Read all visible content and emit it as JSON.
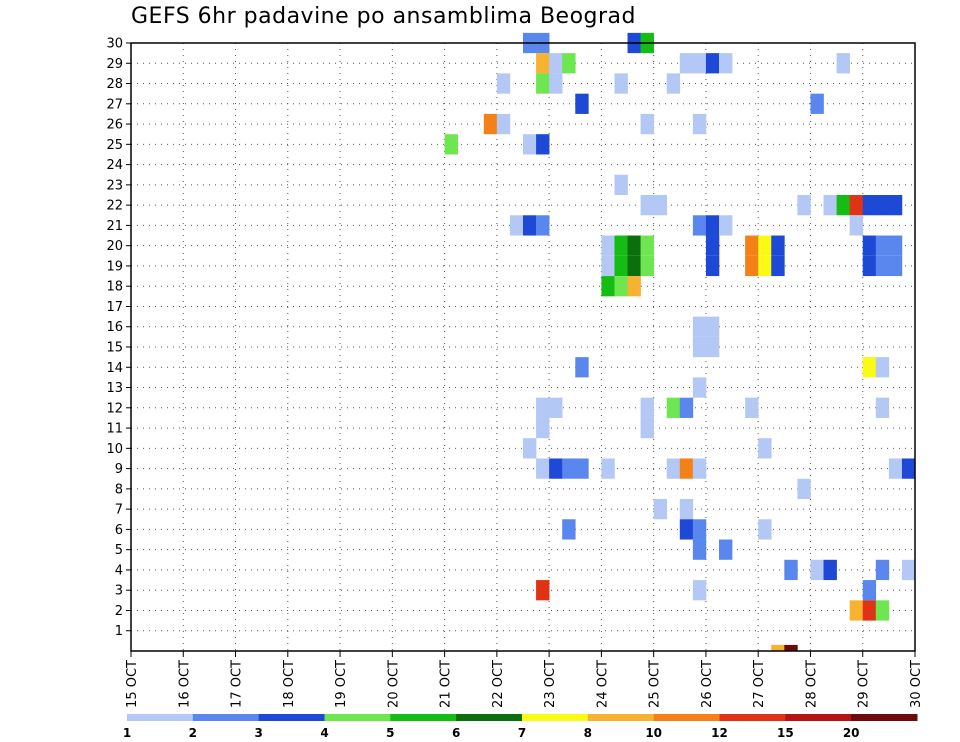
{
  "chart_data": {
    "type": "heatmap",
    "title": "GEFS 6hr padavine po ansamblima Beograd",
    "xlabel": "",
    "ylabel": "",
    "x_tick_labels": [
      "15 OCT",
      "16 OCT",
      "17 OCT",
      "18 OCT",
      "19 OCT",
      "20 OCT",
      "21 OCT",
      "22 OCT",
      "23 OCT",
      "24 OCT",
      "25 OCT",
      "26 OCT",
      "27 OCT",
      "28 OCT",
      "29 OCT",
      "30 OCT"
    ],
    "y_tick_labels": [
      "1",
      "2",
      "3",
      "4",
      "5",
      "6",
      "7",
      "8",
      "9",
      "10",
      "11",
      "12",
      "13",
      "14",
      "15",
      "16",
      "17",
      "18",
      "19",
      "20",
      "21",
      "22",
      "23",
      "24",
      "25",
      "26",
      "27",
      "28",
      "29",
      "30"
    ],
    "x_unit_note": "6-hour steps from 15 OCT; 4 steps per day",
    "ylim": [
      0,
      30
    ],
    "grid": true,
    "legend": {
      "placement": "bottom",
      "bins": [
        {
          "from": 1,
          "to": 2,
          "color": "#b4c8f6"
        },
        {
          "from": 2,
          "to": 3,
          "color": "#5a87ee"
        },
        {
          "from": 3,
          "to": 4,
          "color": "#1e48d6"
        },
        {
          "from": 4,
          "to": 5,
          "color": "#6ee650"
        },
        {
          "from": 5,
          "to": 6,
          "color": "#14bc14"
        },
        {
          "from": 6,
          "to": 7,
          "color": "#0c6e0c"
        },
        {
          "from": 7,
          "to": 8,
          "color": "#fafa14"
        },
        {
          "from": 8,
          "to": 10,
          "color": "#f8b232"
        },
        {
          "from": 10,
          "to": 12,
          "color": "#f48018"
        },
        {
          "from": 12,
          "to": 15,
          "color": "#e03214"
        },
        {
          "from": 15,
          "to": 20,
          "color": "#b41414"
        },
        {
          "from": 20,
          "to": null,
          "color": "#6e0a0a"
        }
      ],
      "labels": [
        "1",
        "2",
        "3",
        "4",
        "5",
        "6",
        "7",
        "8",
        "10",
        "12",
        "15",
        "20"
      ]
    },
    "cells": [
      {
        "member": 30,
        "step": 31,
        "bin": 1
      },
      {
        "member": 30,
        "step": 32,
        "bin": 1
      },
      {
        "member": 30,
        "step": 39,
        "bin": 2
      },
      {
        "member": 30,
        "step": 40,
        "bin": 4
      },
      {
        "member": 29,
        "step": 32,
        "bin": 7
      },
      {
        "member": 29,
        "step": 33,
        "bin": 0
      },
      {
        "member": 29,
        "step": 34,
        "bin": 3
      },
      {
        "member": 29,
        "step": 43,
        "bin": 0
      },
      {
        "member": 29,
        "step": 44,
        "bin": 0
      },
      {
        "member": 29,
        "step": 45,
        "bin": 2
      },
      {
        "member": 29,
        "step": 46,
        "bin": 0
      },
      {
        "member": 29,
        "step": 55,
        "bin": 0
      },
      {
        "member": 28,
        "step": 29,
        "bin": 0
      },
      {
        "member": 28,
        "step": 32,
        "bin": 3
      },
      {
        "member": 28,
        "step": 33,
        "bin": 0
      },
      {
        "member": 28,
        "step": 38,
        "bin": 0
      },
      {
        "member": 28,
        "step": 42,
        "bin": 0
      },
      {
        "member": 27,
        "step": 35,
        "bin": 2
      },
      {
        "member": 27,
        "step": 53,
        "bin": 1
      },
      {
        "member": 26,
        "step": 28,
        "bin": 8
      },
      {
        "member": 26,
        "step": 29,
        "bin": 0
      },
      {
        "member": 26,
        "step": 40,
        "bin": 0
      },
      {
        "member": 26,
        "step": 44,
        "bin": 0
      },
      {
        "member": 25,
        "step": 25,
        "bin": 3
      },
      {
        "member": 25,
        "step": 31,
        "bin": 0
      },
      {
        "member": 25,
        "step": 32,
        "bin": 2
      },
      {
        "member": 23,
        "step": 38,
        "bin": 0
      },
      {
        "member": 22,
        "step": 40,
        "bin": 0
      },
      {
        "member": 22,
        "step": 41,
        "bin": 0
      },
      {
        "member": 22,
        "step": 52,
        "bin": 0
      },
      {
        "member": 22,
        "step": 54,
        "bin": 0
      },
      {
        "member": 22,
        "step": 55,
        "bin": 4
      },
      {
        "member": 22,
        "step": 56,
        "bin": 9
      },
      {
        "member": 22,
        "step": 57,
        "bin": 2
      },
      {
        "member": 22,
        "step": 58,
        "bin": 2
      },
      {
        "member": 22,
        "step": 59,
        "bin": 2
      },
      {
        "member": 21,
        "step": 30,
        "bin": 0
      },
      {
        "member": 21,
        "step": 31,
        "bin": 2
      },
      {
        "member": 21,
        "step": 32,
        "bin": 1
      },
      {
        "member": 21,
        "step": 44,
        "bin": 1
      },
      {
        "member": 21,
        "step": 45,
        "bin": 2
      },
      {
        "member": 21,
        "step": 46,
        "bin": 0
      },
      {
        "member": 21,
        "step": 56,
        "bin": 0
      },
      {
        "member": 20,
        "step": 37,
        "bin": 0
      },
      {
        "member": 20,
        "step": 38,
        "bin": 4
      },
      {
        "member": 20,
        "step": 39,
        "bin": 5
      },
      {
        "member": 20,
        "step": 40,
        "bin": 3
      },
      {
        "member": 20,
        "step": 45,
        "bin": 2
      },
      {
        "member": 20,
        "step": 48,
        "bin": 8
      },
      {
        "member": 20,
        "step": 49,
        "bin": 6
      },
      {
        "member": 20,
        "step": 50,
        "bin": 2
      },
      {
        "member": 20,
        "step": 57,
        "bin": 2
      },
      {
        "member": 20,
        "step": 58,
        "bin": 1
      },
      {
        "member": 20,
        "step": 59,
        "bin": 1
      },
      {
        "member": 19,
        "step": 37,
        "bin": 0
      },
      {
        "member": 19,
        "step": 38,
        "bin": 4
      },
      {
        "member": 19,
        "step": 39,
        "bin": 5
      },
      {
        "member": 19,
        "step": 40,
        "bin": 3
      },
      {
        "member": 19,
        "step": 45,
        "bin": 2
      },
      {
        "member": 19,
        "step": 48,
        "bin": 8
      },
      {
        "member": 19,
        "step": 49,
        "bin": 6
      },
      {
        "member": 19,
        "step": 50,
        "bin": 2
      },
      {
        "member": 19,
        "step": 57,
        "bin": 2
      },
      {
        "member": 19,
        "step": 58,
        "bin": 1
      },
      {
        "member": 19,
        "step": 59,
        "bin": 1
      },
      {
        "member": 18,
        "step": 37,
        "bin": 4
      },
      {
        "member": 18,
        "step": 38,
        "bin": 3
      },
      {
        "member": 18,
        "step": 39,
        "bin": 7
      },
      {
        "member": 16,
        "step": 44,
        "bin": 0
      },
      {
        "member": 16,
        "step": 45,
        "bin": 0
      },
      {
        "member": 15,
        "step": 44,
        "bin": 0
      },
      {
        "member": 15,
        "step": 45,
        "bin": 0
      },
      {
        "member": 14,
        "step": 35,
        "bin": 1
      },
      {
        "member": 14,
        "step": 57,
        "bin": 6
      },
      {
        "member": 14,
        "step": 58,
        "bin": 0
      },
      {
        "member": 13,
        "step": 44,
        "bin": 0
      },
      {
        "member": 12,
        "step": 32,
        "bin": 0
      },
      {
        "member": 12,
        "step": 33,
        "bin": 0
      },
      {
        "member": 12,
        "step": 40,
        "bin": 0
      },
      {
        "member": 12,
        "step": 42,
        "bin": 3
      },
      {
        "member": 12,
        "step": 43,
        "bin": 1
      },
      {
        "member": 12,
        "step": 48,
        "bin": 0
      },
      {
        "member": 12,
        "step": 58,
        "bin": 0
      },
      {
        "member": 11,
        "step": 32,
        "bin": 0
      },
      {
        "member": 11,
        "step": 40,
        "bin": 0
      },
      {
        "member": 10,
        "step": 31,
        "bin": 0
      },
      {
        "member": 10,
        "step": 49,
        "bin": 0
      },
      {
        "member": 9,
        "step": 32,
        "bin": 0
      },
      {
        "member": 9,
        "step": 33,
        "bin": 2
      },
      {
        "member": 9,
        "step": 34,
        "bin": 1
      },
      {
        "member": 9,
        "step": 35,
        "bin": 1
      },
      {
        "member": 9,
        "step": 37,
        "bin": 0
      },
      {
        "member": 9,
        "step": 42,
        "bin": 0
      },
      {
        "member": 9,
        "step": 43,
        "bin": 8
      },
      {
        "member": 9,
        "step": 44,
        "bin": 0
      },
      {
        "member": 9,
        "step": 59,
        "bin": 0
      },
      {
        "member": 9,
        "step": 60,
        "bin": 2
      },
      {
        "member": 8,
        "step": 52,
        "bin": 0
      },
      {
        "member": 7,
        "step": 41,
        "bin": 0
      },
      {
        "member": 7,
        "step": 43,
        "bin": 0
      },
      {
        "member": 6,
        "step": 34,
        "bin": 1
      },
      {
        "member": 6,
        "step": 43,
        "bin": 2
      },
      {
        "member": 6,
        "step": 44,
        "bin": 1
      },
      {
        "member": 6,
        "step": 49,
        "bin": 0
      },
      {
        "member": 5,
        "step": 44,
        "bin": 1
      },
      {
        "member": 5,
        "step": 46,
        "bin": 1
      },
      {
        "member": 4,
        "step": 51,
        "bin": 1
      },
      {
        "member": 4,
        "step": 53,
        "bin": 0
      },
      {
        "member": 4,
        "step": 54,
        "bin": 2
      },
      {
        "member": 4,
        "step": 58,
        "bin": 1
      },
      {
        "member": 4,
        "step": 60,
        "bin": 0
      },
      {
        "member": 3,
        "step": 32,
        "bin": 9
      },
      {
        "member": 3,
        "step": 44,
        "bin": 0
      },
      {
        "member": 3,
        "step": 57,
        "bin": 1
      },
      {
        "member": 2,
        "step": 56,
        "bin": 7
      },
      {
        "member": 2,
        "step": 57,
        "bin": 9
      },
      {
        "member": 2,
        "step": 58,
        "bin": 3
      },
      {
        "member": 0,
        "step": 50,
        "bin": 7
      },
      {
        "member": 0,
        "step": 51,
        "bin": 11
      }
    ]
  }
}
